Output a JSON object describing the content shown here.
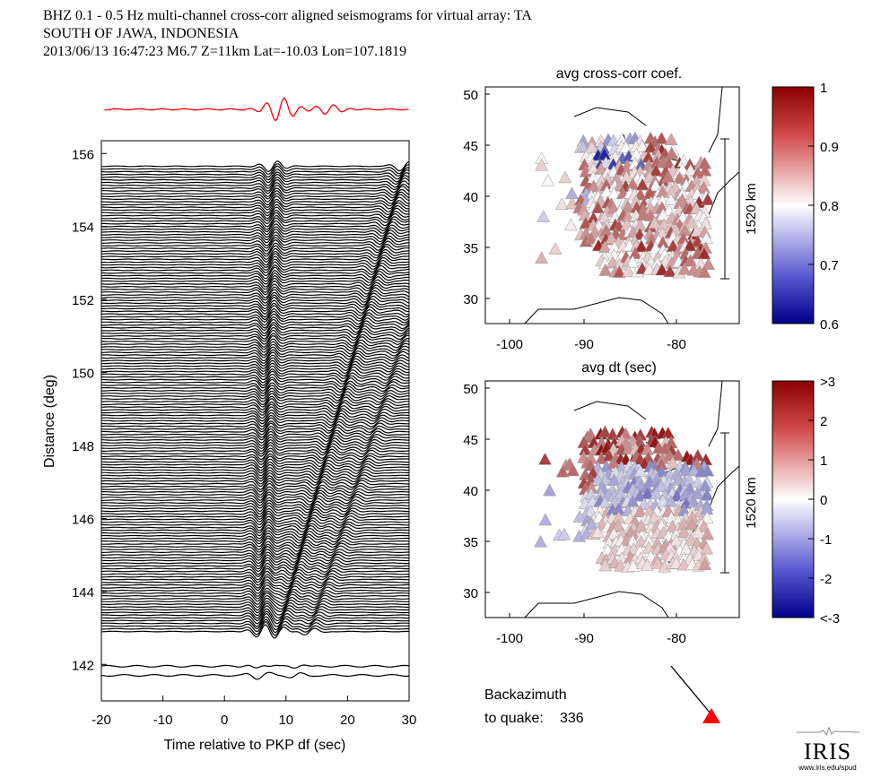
{
  "header": {
    "line1": "BHZ  0.1 - 0.5 Hz  multi-channel cross-corr aligned seismograms for virtual array: TA",
    "line2": "SOUTH OF JAWA, INDONESIA",
    "line3": "2013/06/13  16:47:23  M6.7  Z=11km Lat=-10.03 Lon=107.1819"
  },
  "logo": {
    "text": "IRIS",
    "url": "www.iris.edu/spud"
  },
  "colors": {
    "trace": "#000000",
    "stack": "#ff0000",
    "quake_marker": "#ff0000",
    "cmap_high": "#8b0000",
    "cmap_mid": "#ffffff",
    "cmap_low": "#00008b"
  },
  "chart_data": [
    {
      "type": "line",
      "name": "record-section",
      "xlabel": "Time relative to PKP df (sec)",
      "ylabel": "Distance (deg)",
      "xlim": [
        -20,
        30
      ],
      "ylim": [
        141.0,
        156.35
      ],
      "xticks": [
        "-20",
        "-10",
        "0",
        "10",
        "20",
        "30"
      ],
      "xtick_values": [
        -20,
        -10,
        0,
        10,
        20,
        30
      ],
      "yticks": [
        "142",
        "144",
        "146",
        "148",
        "150",
        "152",
        "154",
        "156"
      ],
      "ytick_values": [
        142,
        144,
        146,
        148,
        150,
        152,
        154,
        156
      ],
      "trace_distance_range": [
        142.9,
        155.7
      ],
      "isolated_traces": [
        141.95,
        141.7
      ],
      "stack_trace": "red beam above section",
      "grid": false
    },
    {
      "type": "scatter",
      "name": "map-avg-cross-corr",
      "title": "avg cross-corr coef.",
      "xticks": [
        "-100",
        "-90",
        "-80"
      ],
      "yticks": [
        "50",
        "45",
        "40",
        "35",
        "30"
      ],
      "scale_bar": "1520 km",
      "colorbar_ticks": [
        "1",
        "0.9",
        "0.8",
        "0.7",
        "0.6"
      ],
      "colorbar_range": [
        0.6,
        1.0
      ]
    },
    {
      "type": "scatter",
      "name": "map-avg-dt",
      "title": "avg dt (sec)",
      "xticks": [
        "-100",
        "-90",
        "-80"
      ],
      "yticks": [
        "50",
        "45",
        "40",
        "35",
        "30"
      ],
      "scale_bar": "1520 km",
      "colorbar_ticks": [
        ">3",
        "2",
        "1",
        "0",
        "-1",
        "-2",
        "<-3"
      ],
      "colorbar_range": [
        -3,
        3
      ]
    }
  ],
  "backazimuth": {
    "label1": "Backazimuth",
    "label2": "to quake:",
    "value": "336"
  }
}
